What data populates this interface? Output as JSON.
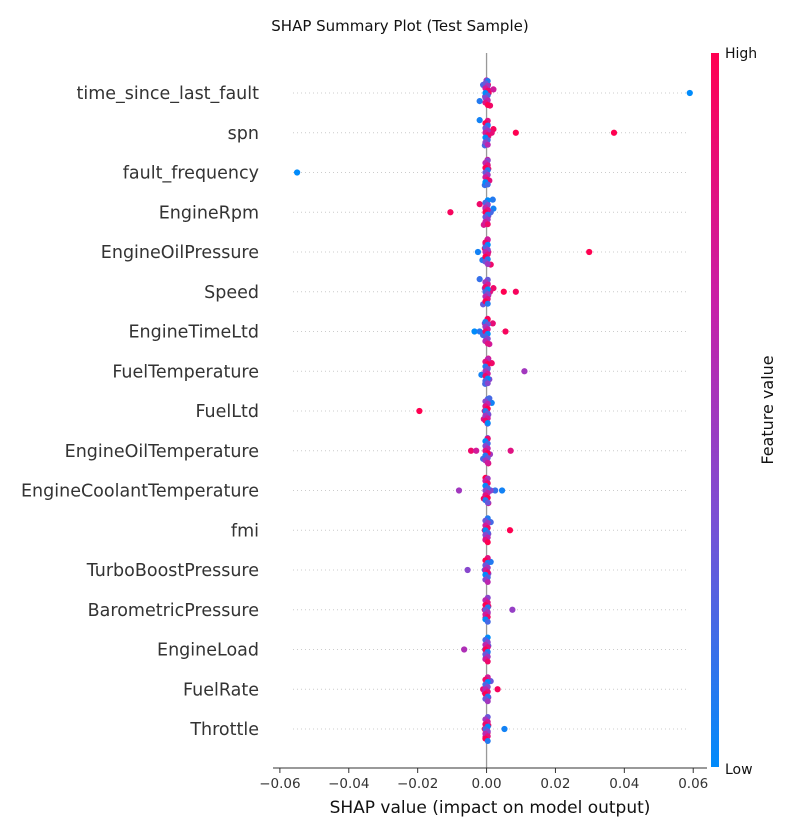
{
  "chart_data": {
    "type": "scatter",
    "title": "SHAP Summary Plot (Test Sample)",
    "xlabel": "SHAP value (impact on model output)",
    "xlim": [
      -0.062,
      0.064
    ],
    "xticks": [
      "−0.06",
      "−0.04",
      "−0.02",
      "0.00",
      "0.02",
      "0.04",
      "0.06"
    ],
    "xtick_values": [
      -0.06,
      -0.04,
      -0.02,
      0.0,
      0.02,
      0.04,
      0.06
    ],
    "grid": false,
    "colorbar": {
      "label": "Feature value",
      "high": "High",
      "low": "Low",
      "colors": [
        "#008bfb",
        "#7b4fd4",
        "#c81fa7",
        "#ff0051"
      ]
    },
    "features": [
      {
        "name": "time_since_last_fault",
        "points": [
          [
            0.059,
            0.0
          ],
          [
            0.0004,
            1.0
          ],
          [
            0.0003,
            0.8
          ],
          [
            0.0002,
            0.6
          ],
          [
            -0.0002,
            0.3
          ],
          [
            -0.002,
            0.1
          ],
          [
            0.001,
            0.9
          ],
          [
            0.0,
            0.5
          ],
          [
            -0.001,
            0.2
          ],
          [
            0.002,
            0.7
          ],
          [
            0.0006,
            0.95
          ],
          [
            -0.0004,
            0.4
          ]
        ]
      },
      {
        "name": "spn",
        "points": [
          [
            0.037,
            1.0
          ],
          [
            0.0085,
            1.0
          ],
          [
            0.002,
            0.95
          ],
          [
            0.0012,
            0.9
          ],
          [
            0.0005,
            0.75
          ],
          [
            0.0,
            0.5
          ],
          [
            -0.0005,
            0.2
          ],
          [
            -0.002,
            0.05
          ],
          [
            0.0003,
            0.6
          ],
          [
            -0.0002,
            0.35
          ],
          [
            0.0015,
            0.85
          ]
        ]
      },
      {
        "name": "fault_frequency",
        "points": [
          [
            -0.055,
            0.0
          ],
          [
            0.0002,
            0.6
          ],
          [
            0.0005,
            0.9
          ],
          [
            -0.0002,
            0.3
          ],
          [
            0.0,
            0.5
          ],
          [
            0.0008,
            0.8
          ],
          [
            -0.0005,
            0.15
          ],
          [
            0.0003,
            0.7
          ]
        ]
      },
      {
        "name": "EngineRpm",
        "points": [
          [
            -0.0105,
            0.95
          ],
          [
            -0.002,
            0.9
          ],
          [
            0.002,
            0.05
          ],
          [
            0.0012,
            0.2
          ],
          [
            0.0005,
            0.4
          ],
          [
            0.0,
            0.6
          ],
          [
            -0.0008,
            0.75
          ],
          [
            0.0018,
            0.1
          ],
          [
            0.0003,
            0.5
          ],
          [
            -0.0003,
            0.85
          ]
        ]
      },
      {
        "name": "EngineOilPressure",
        "points": [
          [
            0.0298,
            1.0
          ],
          [
            -0.0025,
            0.05
          ],
          [
            -0.0005,
            0.95
          ],
          [
            0.0005,
            0.8
          ],
          [
            0.0,
            0.6
          ],
          [
            -0.0012,
            0.1
          ],
          [
            0.0012,
            0.9
          ],
          [
            0.0003,
            0.7
          ],
          [
            -0.0003,
            0.4
          ]
        ]
      },
      {
        "name": "Speed",
        "points": [
          [
            0.0085,
            0.95
          ],
          [
            0.005,
            1.0
          ],
          [
            0.002,
            0.9
          ],
          [
            0.001,
            0.8
          ],
          [
            0.0005,
            0.65
          ],
          [
            0.0,
            0.5
          ],
          [
            -0.001,
            0.3
          ],
          [
            -0.002,
            0.15
          ],
          [
            0.0003,
            0.7
          ],
          [
            -0.0005,
            0.4
          ]
        ]
      },
      {
        "name": "EngineTimeLtd",
        "points": [
          [
            0.0055,
            0.95
          ],
          [
            0.0018,
            0.85
          ],
          [
            -0.0035,
            0.0
          ],
          [
            -0.002,
            0.1
          ],
          [
            -0.001,
            0.2
          ],
          [
            0.0,
            0.5
          ],
          [
            0.0008,
            0.7
          ],
          [
            0.0003,
            0.8
          ],
          [
            -0.0005,
            0.4
          ]
        ]
      },
      {
        "name": "FuelTemperature",
        "points": [
          [
            0.011,
            0.5
          ],
          [
            0.0015,
            0.9
          ],
          [
            0.0003,
            0.6
          ],
          [
            0.0,
            0.3
          ],
          [
            -0.0015,
            0.05
          ],
          [
            0.0008,
            0.4
          ],
          [
            -0.0004,
            0.2
          ],
          [
            0.0005,
            0.75
          ]
        ]
      },
      {
        "name": "FuelLtd",
        "points": [
          [
            -0.0195,
            1.0
          ],
          [
            0.0015,
            0.05
          ],
          [
            0.0,
            0.6
          ],
          [
            -0.0005,
            0.9
          ],
          [
            0.0005,
            0.4
          ],
          [
            -0.0008,
            0.75
          ],
          [
            0.0003,
            0.3
          ],
          [
            0.0008,
            0.2
          ]
        ]
      },
      {
        "name": "EngineOilTemperature",
        "points": [
          [
            0.007,
            0.8
          ],
          [
            -0.0045,
            0.9
          ],
          [
            -0.003,
            0.7
          ],
          [
            0.0,
            0.95
          ],
          [
            0.001,
            0.5
          ],
          [
            -0.001,
            0.2
          ],
          [
            0.0005,
            0.85
          ],
          [
            0.0003,
            0.35
          ]
        ]
      },
      {
        "name": "EngineCoolantTemperature",
        "points": [
          [
            -0.008,
            0.5
          ],
          [
            0.0045,
            0.05
          ],
          [
            0.0025,
            0.15
          ],
          [
            0.0012,
            0.4
          ],
          [
            0.0,
            0.9
          ],
          [
            -0.0008,
            0.95
          ],
          [
            0.0005,
            0.7
          ],
          [
            -0.0003,
            1.0
          ]
        ]
      },
      {
        "name": "fmi",
        "points": [
          [
            0.0068,
            1.0
          ],
          [
            0.0012,
            0.2
          ],
          [
            0.0,
            0.6
          ],
          [
            -0.0005,
            0.85
          ],
          [
            0.0005,
            0.4
          ],
          [
            -0.0002,
            0.75
          ]
        ]
      },
      {
        "name": "TurboBoostPressure",
        "points": [
          [
            -0.0055,
            0.4
          ],
          [
            0.0012,
            0.1
          ],
          [
            0.0,
            0.3
          ],
          [
            -0.0005,
            0.2
          ],
          [
            0.0005,
            0.35
          ],
          [
            0.0002,
            0.25
          ]
        ]
      },
      {
        "name": "BarometricPressure",
        "points": [
          [
            0.0075,
            0.45
          ],
          [
            0.0,
            0.85
          ],
          [
            0.0005,
            0.9
          ],
          [
            -0.0005,
            0.8
          ],
          [
            0.0003,
            0.7
          ],
          [
            -0.0003,
            0.95
          ]
        ]
      },
      {
        "name": "EngineLoad",
        "points": [
          [
            -0.0065,
            0.55
          ],
          [
            0.0,
            0.15
          ],
          [
            0.0005,
            0.3
          ],
          [
            -0.0004,
            0.2
          ],
          [
            0.0002,
            0.4
          ],
          [
            -0.0002,
            0.1
          ]
        ]
      },
      {
        "name": "FuelRate",
        "points": [
          [
            0.0032,
            0.95
          ],
          [
            0.0012,
            0.3
          ],
          [
            0.0,
            0.7
          ],
          [
            -0.001,
            0.85
          ],
          [
            -0.0005,
            0.6
          ],
          [
            0.0005,
            0.5
          ]
        ]
      },
      {
        "name": "Throttle",
        "points": [
          [
            0.0052,
            0.05
          ],
          [
            0.0,
            0.95
          ],
          [
            0.0005,
            0.9
          ],
          [
            -0.0005,
            1.0
          ],
          [
            0.0003,
            0.85
          ],
          [
            -0.0003,
            0.8
          ]
        ]
      }
    ]
  }
}
